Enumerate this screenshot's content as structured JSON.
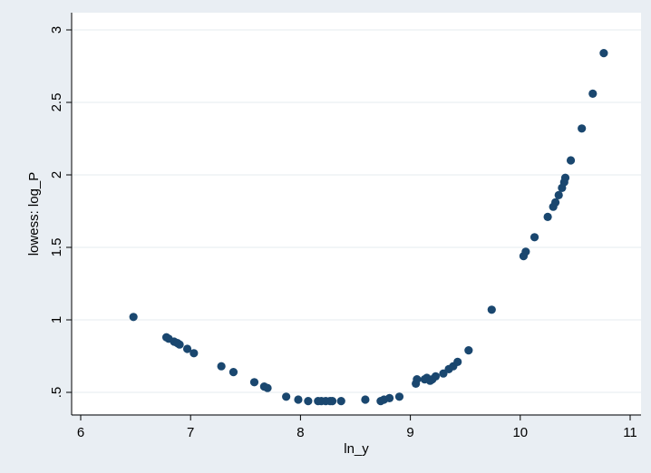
{
  "chart_data": {
    "type": "scatter",
    "xlabel": "ln_y",
    "ylabel": "lowess: log_P",
    "xlim": [
      6,
      11
    ],
    "ylim": [
      0.5,
      3
    ],
    "xticks": [
      {
        "value": 6,
        "label": "6"
      },
      {
        "value": 7,
        "label": "7"
      },
      {
        "value": 8,
        "label": "8"
      },
      {
        "value": 9,
        "label": "9"
      },
      {
        "value": 10,
        "label": "10"
      },
      {
        "value": 11,
        "label": "11"
      }
    ],
    "yticks": [
      {
        "value": 0.5,
        "label": ".5"
      },
      {
        "value": 1,
        "label": "1"
      },
      {
        "value": 1.5,
        "label": "1.5"
      },
      {
        "value": 2,
        "label": "2"
      },
      {
        "value": 2.5,
        "label": "2.5"
      },
      {
        "value": 3,
        "label": "3"
      }
    ],
    "grid": true,
    "colors": {
      "page_background": "#e9eef3",
      "plot_background": "#ffffff",
      "marker": "#1a476f",
      "grid": "#e6ebef",
      "axis": "#000000"
    },
    "points": [
      [
        6.48,
        1.02
      ],
      [
        6.78,
        0.88
      ],
      [
        6.8,
        0.87
      ],
      [
        6.85,
        0.85
      ],
      [
        6.88,
        0.84
      ],
      [
        6.9,
        0.83
      ],
      [
        6.97,
        0.8
      ],
      [
        7.03,
        0.77
      ],
      [
        7.28,
        0.68
      ],
      [
        7.39,
        0.64
      ],
      [
        7.58,
        0.57
      ],
      [
        7.67,
        0.54
      ],
      [
        7.7,
        0.53
      ],
      [
        7.87,
        0.47
      ],
      [
        7.98,
        0.45
      ],
      [
        8.07,
        0.44
      ],
      [
        8.16,
        0.44
      ],
      [
        8.19,
        0.44
      ],
      [
        8.23,
        0.44
      ],
      [
        8.27,
        0.44
      ],
      [
        8.29,
        0.44
      ],
      [
        8.37,
        0.44
      ],
      [
        8.59,
        0.45
      ],
      [
        8.73,
        0.44
      ],
      [
        8.76,
        0.45
      ],
      [
        8.81,
        0.46
      ],
      [
        8.9,
        0.47
      ],
      [
        9.05,
        0.56
      ],
      [
        9.06,
        0.59
      ],
      [
        9.13,
        0.59
      ],
      [
        9.15,
        0.6
      ],
      [
        9.18,
        0.58
      ],
      [
        9.2,
        0.59
      ],
      [
        9.23,
        0.61
      ],
      [
        9.3,
        0.63
      ],
      [
        9.35,
        0.66
      ],
      [
        9.39,
        0.68
      ],
      [
        9.43,
        0.71
      ],
      [
        9.53,
        0.79
      ],
      [
        9.74,
        1.07
      ],
      [
        10.03,
        1.44
      ],
      [
        10.05,
        1.47
      ],
      [
        10.13,
        1.57
      ],
      [
        10.25,
        1.71
      ],
      [
        10.3,
        1.78
      ],
      [
        10.32,
        1.81
      ],
      [
        10.35,
        1.86
      ],
      [
        10.38,
        1.91
      ],
      [
        10.4,
        1.95
      ],
      [
        10.41,
        1.98
      ],
      [
        10.46,
        2.1
      ],
      [
        10.56,
        2.32
      ],
      [
        10.66,
        2.56
      ],
      [
        10.76,
        2.84
      ]
    ]
  }
}
